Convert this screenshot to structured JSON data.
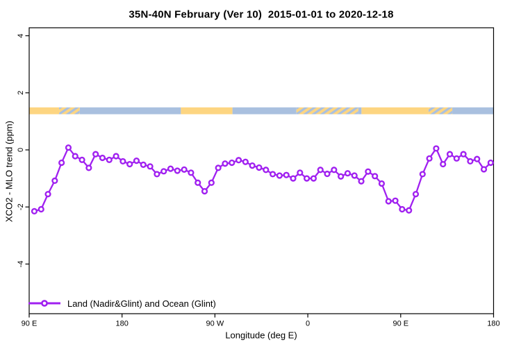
{
  "chart_data": {
    "type": "line",
    "title": "35N-40N February (Ver 10)  2015-01-01 to 2020-12-18",
    "xlabel": "Longitude (deg E)",
    "ylabel": "XCO2 - MLO trend (ppm)",
    "xlim": [
      90,
      540
    ],
    "ylim": [
      -5.74,
      4.28
    ],
    "grid": false,
    "x_ticks": {
      "values": [
        90,
        180,
        270,
        360,
        450,
        540
      ],
      "labels": [
        "90 E",
        "180",
        "90 W",
        "0",
        "90 E",
        "180"
      ]
    },
    "y_ticks": {
      "values": [
        4,
        2,
        0,
        -2,
        -4
      ],
      "labels": [
        "4",
        "2",
        "0",
        "-2",
        "-4"
      ]
    },
    "legend": {
      "position": "bottom-left",
      "entries": [
        {
          "label": "Land (Nadir&Glint) and Ocean (Glint)",
          "color": "#A020F0",
          "marker": "open-circle"
        }
      ]
    },
    "series": [
      {
        "name": "Land (Nadir&Glint) and Ocean (Glint)",
        "color": "#A020F0",
        "marker_fill": "#FFFFFF",
        "x_start": 95,
        "x_step": 6.6,
        "values": [
          -2.15,
          -2.08,
          -1.55,
          -1.08,
          -0.45,
          0.08,
          -0.22,
          -0.35,
          -0.63,
          -0.15,
          -0.28,
          -0.35,
          -0.22,
          -0.4,
          -0.5,
          -0.38,
          -0.52,
          -0.58,
          -0.85,
          -0.75,
          -0.66,
          -0.73,
          -0.69,
          -0.8,
          -1.15,
          -1.45,
          -1.15,
          -0.63,
          -0.48,
          -0.45,
          -0.36,
          -0.42,
          -0.55,
          -0.62,
          -0.7,
          -0.85,
          -0.9,
          -0.88,
          -1.0,
          -0.8,
          -1.0,
          -1.0,
          -0.7,
          -0.84,
          -0.7,
          -0.93,
          -0.82,
          -0.9,
          -1.1,
          -0.76,
          -0.92,
          -1.18,
          -1.8,
          -1.78,
          -2.08,
          -2.12,
          -1.55,
          -0.85,
          -0.3,
          0.05,
          -0.5,
          -0.15,
          -0.3,
          -0.15,
          -0.4,
          -0.32,
          -0.68,
          -0.45
        ]
      }
    ],
    "land_ocean_strip": {
      "y_from": 1.25,
      "y_to": 1.49,
      "land_color": "#FDD581",
      "ocean_color": "#A9C0DF",
      "segments": [
        {
          "from": 90,
          "to": 119,
          "type": "land"
        },
        {
          "from": 119,
          "to": 139,
          "type": "mixed"
        },
        {
          "from": 139,
          "to": 237,
          "type": "ocean"
        },
        {
          "from": 237,
          "to": 287,
          "type": "land"
        },
        {
          "from": 287,
          "to": 349,
          "type": "ocean"
        },
        {
          "from": 349,
          "to": 409,
          "type": "mixed"
        },
        {
          "from": 409,
          "to": 412,
          "type": "ocean"
        },
        {
          "from": 412,
          "to": 477,
          "type": "land"
        },
        {
          "from": 477,
          "to": 500,
          "type": "mixed"
        },
        {
          "from": 500,
          "to": 540,
          "type": "ocean"
        }
      ]
    }
  }
}
